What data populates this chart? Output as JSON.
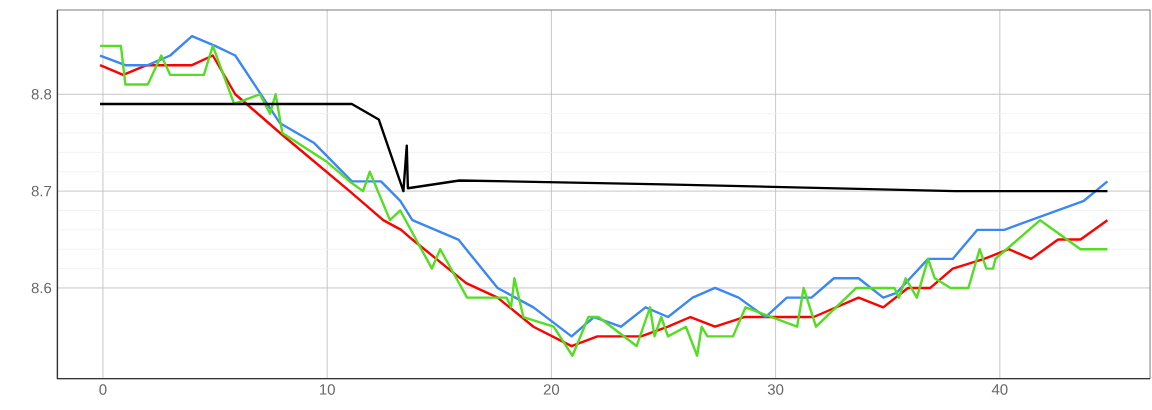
{
  "chart_data": {
    "type": "line",
    "xlim": [
      -2.05,
      46.7
    ],
    "ylim": [
      8.506,
      8.887
    ],
    "xticks": [
      0,
      10,
      20,
      30,
      40
    ],
    "yticks": [
      8.6,
      8.7,
      8.8
    ],
    "grid": true,
    "line_style": "solid",
    "marker": "none",
    "series": [
      {
        "color": "#ff0000",
        "x": [
          -0.13,
          0.9,
          1.95,
          3.97,
          4.9,
          5.9,
          7.9,
          11.0,
          12.5,
          13.3,
          13.8,
          16.2,
          17.6,
          19.2,
          20.9,
          22.05,
          24,
          25.2,
          26.2,
          27.3,
          28.6,
          31.0,
          31.7,
          33.7,
          34.8,
          35.9,
          36.9,
          37.9,
          39.3,
          40.4,
          41.4,
          42.6,
          43.6,
          44.8
        ],
        "values": [
          8.83,
          8.82,
          8.83,
          8.83,
          8.84,
          8.8,
          8.76,
          8.7,
          8.67,
          8.66,
          8.65,
          8.605,
          8.59,
          8.56,
          8.54,
          8.55,
          8.55,
          8.56,
          8.57,
          8.56,
          8.57,
          8.57,
          8.57,
          8.59,
          8.58,
          8.6,
          8.6,
          8.62,
          8.63,
          8.64,
          8.63,
          8.65,
          8.65,
          8.67
        ]
      },
      {
        "color": "#3a87f5",
        "x": [
          -0.13,
          1,
          2,
          3,
          3.97,
          5,
          5.9,
          7.9,
          9.4,
          11.1,
          12.4,
          13.26,
          13.8,
          15.85,
          17.6,
          19.2,
          20.9,
          21.9,
          23.1,
          24.2,
          25.2,
          26.3,
          27.3,
          28.35,
          29.55,
          30.5,
          31.6,
          32.6,
          33.7,
          34.8,
          35.4,
          36.8,
          37.9,
          39.0,
          40.2,
          43.75,
          44.8
        ],
        "values": [
          8.84,
          8.83,
          8.83,
          8.84,
          8.86,
          8.85,
          8.84,
          8.77,
          8.75,
          8.71,
          8.71,
          8.69,
          8.67,
          8.65,
          8.6,
          8.58,
          8.55,
          8.57,
          8.56,
          8.58,
          8.57,
          8.59,
          8.6,
          8.59,
          8.57,
          8.59,
          8.59,
          8.61,
          8.61,
          8.59,
          8.595,
          8.63,
          8.63,
          8.66,
          8.66,
          8.69,
          8.71
        ]
      },
      {
        "color": "#55dd22",
        "x": [
          -0.13,
          0.8,
          1.0,
          2.0,
          2.6,
          3.0,
          4.5,
          4.9,
          5.85,
          7.0,
          7.45,
          7.7,
          8.0,
          10.0,
          11.0,
          11.6,
          11.9,
          12.8,
          13.26,
          14.67,
          15.04,
          16.24,
          18.0,
          18.2,
          18.35,
          18.75,
          20.1,
          20.94,
          21.65,
          22.1,
          23.8,
          24.4,
          24.6,
          24.9,
          25.2,
          26.0,
          26.5,
          26.7,
          26.96,
          28.1,
          28.66,
          30.96,
          31.25,
          31.8,
          33.6,
          35.3,
          35.5,
          35.8,
          36.3,
          36.8,
          37.1,
          37.8,
          38.6,
          39.1,
          39.4,
          39.7,
          39.8,
          41.8,
          43.6,
          44.8
        ],
        "values": [
          8.85,
          8.85,
          8.81,
          8.81,
          8.84,
          8.82,
          8.82,
          8.85,
          8.79,
          8.8,
          8.78,
          8.8,
          8.76,
          8.73,
          8.71,
          8.7,
          8.72,
          8.67,
          8.68,
          8.62,
          8.64,
          8.59,
          8.59,
          8.58,
          8.61,
          8.57,
          8.56,
          8.53,
          8.57,
          8.57,
          8.54,
          8.58,
          8.55,
          8.57,
          8.55,
          8.56,
          8.53,
          8.56,
          8.55,
          8.55,
          8.58,
          8.56,
          8.6,
          8.56,
          8.6,
          8.6,
          8.59,
          8.61,
          8.59,
          8.63,
          8.61,
          8.6,
          8.6,
          8.64,
          8.62,
          8.62,
          8.63,
          8.67,
          8.64,
          8.64
        ]
      },
      {
        "color": "#000000",
        "x": [
          -0.13,
          11.1,
          12.3,
          13.4,
          13.55,
          13.6,
          15.9,
          25,
          38,
          44.8
        ],
        "values": [
          8.79,
          8.79,
          8.774,
          8.7,
          8.747,
          8.703,
          8.711,
          8.707,
          8.7,
          8.7
        ]
      }
    ]
  }
}
